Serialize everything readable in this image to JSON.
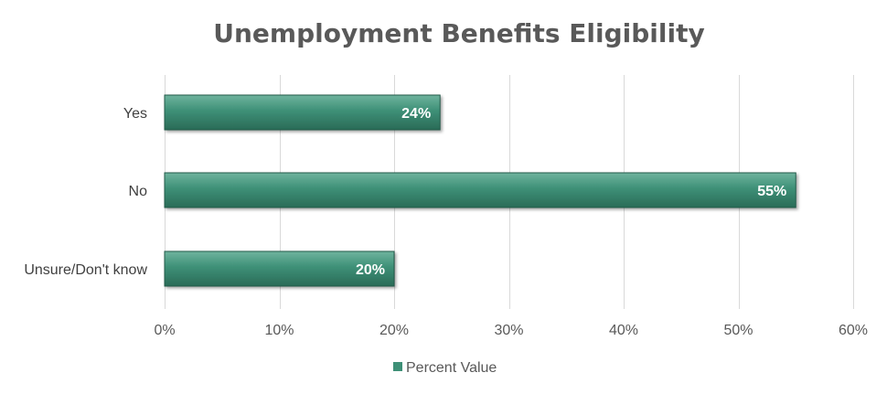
{
  "chart_data": {
    "type": "bar",
    "orientation": "horizontal",
    "title": "Unemployment Benefits Eligibility",
    "categories": [
      "Yes",
      "No",
      "Unsure/Don't know"
    ],
    "series": [
      {
        "name": "Percent Value",
        "values": [
          24,
          55,
          20
        ],
        "labels": [
          "24%",
          "55%",
          "20%"
        ]
      }
    ],
    "xlim": [
      0,
      60
    ],
    "xticks": [
      0,
      10,
      20,
      30,
      40,
      50,
      60
    ],
    "xtick_labels": [
      "0%",
      "10%",
      "20%",
      "30%",
      "40%",
      "50%",
      "60%"
    ],
    "grid": true,
    "legend_position": "bottom",
    "colors": {
      "bar": "#3e9077",
      "bar_light": "#6fb39e",
      "bar_dark": "#2a6b57",
      "bar_edge": "#245a4a"
    }
  }
}
